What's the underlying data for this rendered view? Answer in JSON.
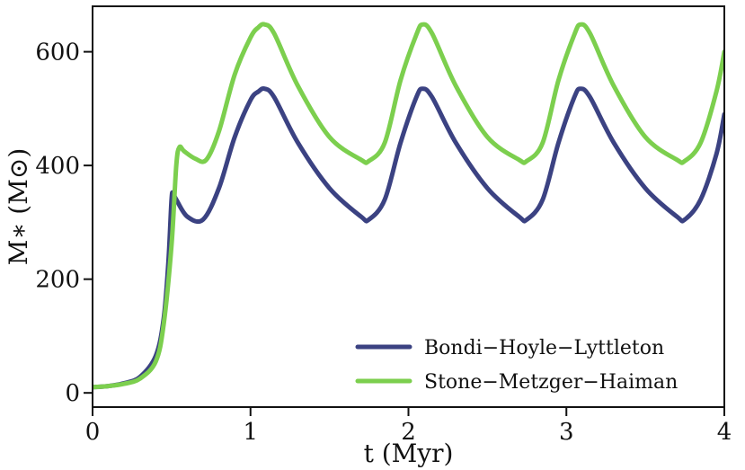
{
  "chart_data": {
    "type": "line",
    "title": "",
    "xlabel": "t (Myr)",
    "ylabel": "M∗ (M⊙)",
    "xlim": [
      0,
      4
    ],
    "ylim": [
      -25,
      680
    ],
    "x_ticks": [
      0,
      1,
      2,
      3,
      4
    ],
    "x_tick_labels": [
      "0",
      "1",
      "2",
      "3",
      "4"
    ],
    "y_ticks": [
      0,
      200,
      400,
      600
    ],
    "y_tick_labels": [
      "0",
      "200",
      "400",
      "600"
    ],
    "grid": false,
    "legend_position": "bottom-right",
    "series": [
      {
        "name": "Bondi−Hoyle−Lyttleton",
        "color": "#3b4282",
        "x": [
          0,
          0.1,
          0.2,
          0.3,
          0.4,
          0.45,
          0.48,
          0.5,
          0.51,
          0.53,
          0.6,
          0.7,
          0.8,
          0.9,
          1.0,
          1.05,
          1.09,
          1.15,
          1.3,
          1.5,
          1.7,
          1.75,
          1.85,
          1.95,
          2.05,
          2.09,
          2.15,
          2.3,
          2.5,
          2.7,
          2.75,
          2.85,
          2.95,
          3.05,
          3.09,
          3.15,
          3.3,
          3.5,
          3.7,
          3.75,
          3.85,
          3.95,
          4.0
        ],
        "y": [
          10,
          12,
          17,
          28,
          65,
          130,
          230,
          340,
          350,
          340,
          310,
          305,
          360,
          450,
          515,
          530,
          535,
          520,
          440,
          360,
          310,
          305,
          340,
          440,
          520,
          535,
          520,
          440,
          360,
          310,
          305,
          340,
          440,
          520,
          535,
          520,
          440,
          360,
          310,
          305,
          340,
          420,
          490
        ]
      },
      {
        "name": "Stone−Metzger−Haiman",
        "color": "#7ccf4e",
        "x": [
          0,
          0.1,
          0.2,
          0.3,
          0.4,
          0.45,
          0.5,
          0.53,
          0.55,
          0.58,
          0.65,
          0.72,
          0.8,
          0.9,
          1.0,
          1.05,
          1.09,
          1.15,
          1.3,
          1.5,
          1.7,
          1.75,
          1.85,
          1.95,
          2.05,
          2.09,
          2.15,
          2.3,
          2.5,
          2.7,
          2.75,
          2.85,
          2.95,
          3.05,
          3.09,
          3.15,
          3.3,
          3.5,
          3.7,
          3.75,
          3.85,
          3.95,
          4.0
        ],
        "y": [
          10,
          12,
          16,
          25,
          55,
          120,
          260,
          400,
          432,
          425,
          412,
          410,
          460,
          560,
          625,
          643,
          648,
          632,
          540,
          450,
          410,
          408,
          440,
          550,
          630,
          648,
          632,
          540,
          450,
          410,
          408,
          440,
          550,
          630,
          648,
          632,
          540,
          450,
          410,
          408,
          440,
          530,
          600
        ]
      }
    ]
  }
}
